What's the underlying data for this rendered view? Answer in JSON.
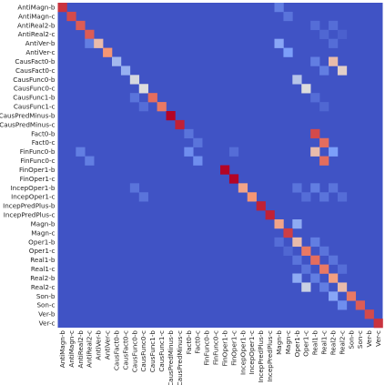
{
  "chart_data": {
    "type": "heatmap",
    "title": "",
    "xlabel": "",
    "ylabel": "",
    "labels": [
      "AntiMagn-b",
      "AntiMagn-c",
      "AntiReal2-b",
      "AntiReal2-c",
      "AntiVer-b",
      "AntiVer-c",
      "CausFact0-b",
      "CausFact0-c",
      "CausFunc0-b",
      "CausFunc0-c",
      "CausFunc1-b",
      "CausFunc1-c",
      "CausPredMinus-b",
      "CausPredMinus-c",
      "Fact0-b",
      "Fact0-c",
      "FinFunc0-b",
      "FinFunc0-c",
      "FinOper1-b",
      "FinOper1-c",
      "IncepOper1-b",
      "IncepOper1-c",
      "IncepPredPlus-b",
      "IncepPredPlus-c",
      "Magn-b",
      "Magn-c",
      "Oper1-b",
      "Oper1-c",
      "Real1-b",
      "Real1-c",
      "Real2-b",
      "Real2-c",
      "Son-b",
      "Son-c",
      "Ver-b",
      "Ver-c"
    ],
    "colormap": "coolwarm",
    "value_range": [
      0,
      1
    ],
    "background_value": 0.02,
    "cells": [
      {
        "row": 0,
        "col": 0,
        "value": 0.92
      },
      {
        "row": 0,
        "col": 24,
        "value": 0.15
      },
      {
        "row": 1,
        "col": 1,
        "value": 0.88
      },
      {
        "row": 1,
        "col": 25,
        "value": 0.12
      },
      {
        "row": 2,
        "col": 2,
        "value": 0.85
      },
      {
        "row": 2,
        "col": 28,
        "value": 0.1
      },
      {
        "row": 2,
        "col": 30,
        "value": 0.1
      },
      {
        "row": 3,
        "col": 3,
        "value": 0.85
      },
      {
        "row": 3,
        "col": 29,
        "value": 0.08
      },
      {
        "row": 3,
        "col": 31,
        "value": 0.06
      },
      {
        "row": 4,
        "col": 3,
        "value": 0.15
      },
      {
        "row": 4,
        "col": 4,
        "value": 0.62
      },
      {
        "row": 4,
        "col": 24,
        "value": 0.28
      },
      {
        "row": 4,
        "col": 30,
        "value": 0.1
      },
      {
        "row": 5,
        "col": 5,
        "value": 0.75
      },
      {
        "row": 5,
        "col": 25,
        "value": 0.25
      },
      {
        "row": 6,
        "col": 6,
        "value": 0.35
      },
      {
        "row": 6,
        "col": 28,
        "value": 0.15
      },
      {
        "row": 6,
        "col": 30,
        "value": 0.62
      },
      {
        "row": 7,
        "col": 7,
        "value": 0.32
      },
      {
        "row": 7,
        "col": 29,
        "value": 0.15
      },
      {
        "row": 7,
        "col": 31,
        "value": 0.55
      },
      {
        "row": 8,
        "col": 8,
        "value": 0.48
      },
      {
        "row": 8,
        "col": 26,
        "value": 0.4
      },
      {
        "row": 9,
        "col": 9,
        "value": 0.5
      },
      {
        "row": 9,
        "col": 27,
        "value": 0.5
      },
      {
        "row": 10,
        "col": 8,
        "value": 0.12
      },
      {
        "row": 10,
        "col": 10,
        "value": 0.82
      },
      {
        "row": 10,
        "col": 28,
        "value": 0.1
      },
      {
        "row": 11,
        "col": 9,
        "value": 0.1
      },
      {
        "row": 11,
        "col": 11,
        "value": 0.8
      },
      {
        "row": 11,
        "col": 29,
        "value": 0.08
      },
      {
        "row": 12,
        "col": 12,
        "value": 1.0
      },
      {
        "row": 13,
        "col": 13,
        "value": 0.95
      },
      {
        "row": 14,
        "col": 14,
        "value": 0.12
      },
      {
        "row": 14,
        "col": 28,
        "value": 0.88
      },
      {
        "row": 15,
        "col": 15,
        "value": 0.12
      },
      {
        "row": 15,
        "col": 29,
        "value": 0.82
      },
      {
        "row": 16,
        "col": 2,
        "value": 0.15
      },
      {
        "row": 16,
        "col": 14,
        "value": 0.2
      },
      {
        "row": 16,
        "col": 19,
        "value": 0.1
      },
      {
        "row": 16,
        "col": 28,
        "value": 0.62
      },
      {
        "row": 16,
        "col": 30,
        "value": 0.25
      },
      {
        "row": 17,
        "col": 3,
        "value": 0.15
      },
      {
        "row": 17,
        "col": 15,
        "value": 0.2
      },
      {
        "row": 17,
        "col": 29,
        "value": 0.82
      },
      {
        "row": 18,
        "col": 18,
        "value": 1.0
      },
      {
        "row": 19,
        "col": 19,
        "value": 1.0
      },
      {
        "row": 20,
        "col": 8,
        "value": 0.12
      },
      {
        "row": 20,
        "col": 20,
        "value": 0.7
      },
      {
        "row": 20,
        "col": 26,
        "value": 0.12
      },
      {
        "row": 20,
        "col": 28,
        "value": 0.15
      },
      {
        "row": 20,
        "col": 30,
        "value": 0.12
      },
      {
        "row": 21,
        "col": 9,
        "value": 0.12
      },
      {
        "row": 21,
        "col": 21,
        "value": 0.75
      },
      {
        "row": 21,
        "col": 27,
        "value": 0.1
      },
      {
        "row": 21,
        "col": 29,
        "value": 0.12
      },
      {
        "row": 21,
        "col": 31,
        "value": 0.1
      },
      {
        "row": 22,
        "col": 22,
        "value": 0.95
      },
      {
        "row": 23,
        "col": 23,
        "value": 0.95
      },
      {
        "row": 24,
        "col": 24,
        "value": 0.7
      },
      {
        "row": 24,
        "col": 26,
        "value": 0.3
      },
      {
        "row": 25,
        "col": 25,
        "value": 0.9
      },
      {
        "row": 26,
        "col": 24,
        "value": 0.1
      },
      {
        "row": 26,
        "col": 26,
        "value": 0.62
      },
      {
        "row": 26,
        "col": 28,
        "value": 0.15
      },
      {
        "row": 27,
        "col": 25,
        "value": 0.08
      },
      {
        "row": 27,
        "col": 27,
        "value": 0.8
      },
      {
        "row": 27,
        "col": 29,
        "value": 0.12
      },
      {
        "row": 28,
        "col": 26,
        "value": 0.12
      },
      {
        "row": 28,
        "col": 28,
        "value": 0.82
      },
      {
        "row": 28,
        "col": 30,
        "value": 0.12
      },
      {
        "row": 29,
        "col": 27,
        "value": 0.12
      },
      {
        "row": 29,
        "col": 29,
        "value": 0.8
      },
      {
        "row": 29,
        "col": 31,
        "value": 0.1
      },
      {
        "row": 30,
        "col": 26,
        "value": 0.3
      },
      {
        "row": 30,
        "col": 28,
        "value": 0.15
      },
      {
        "row": 30,
        "col": 30,
        "value": 0.72
      },
      {
        "row": 31,
        "col": 27,
        "value": 0.45
      },
      {
        "row": 31,
        "col": 29,
        "value": 0.15
      },
      {
        "row": 31,
        "col": 31,
        "value": 0.62
      },
      {
        "row": 32,
        "col": 30,
        "value": 0.28
      },
      {
        "row": 32,
        "col": 32,
        "value": 0.8
      },
      {
        "row": 33,
        "col": 31,
        "value": 0.2
      },
      {
        "row": 33,
        "col": 33,
        "value": 0.85
      },
      {
        "row": 34,
        "col": 34,
        "value": 0.88
      },
      {
        "row": 35,
        "col": 35,
        "value": 0.92
      }
    ]
  }
}
